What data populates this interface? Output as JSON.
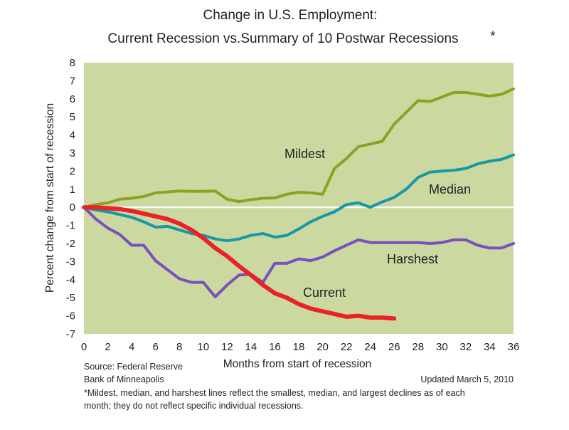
{
  "chart_data": {
    "type": "line",
    "title_line1": "Change in U.S. Employment:",
    "title_line2": "Current Recession vs.Summary of 10 Postwar Recessions",
    "title_mark": "*",
    "xlabel": "Months from start of recession",
    "ylabel": "Percent change from start of recession",
    "xlim": [
      0,
      36
    ],
    "ylim": [
      -7,
      8
    ],
    "x_ticks": [
      0,
      2,
      4,
      6,
      8,
      10,
      12,
      14,
      16,
      18,
      20,
      22,
      24,
      26,
      28,
      30,
      32,
      34,
      36
    ],
    "y_ticks": [
      8,
      7,
      6,
      5,
      4,
      3,
      2,
      1,
      0,
      -1,
      -2,
      -3,
      -4,
      -5,
      -6,
      -7
    ],
    "grid": false,
    "colors": {
      "plot_background": "#cbd9a0",
      "zero_line": "#ffffff"
    },
    "series": [
      {
        "name": "Mildest",
        "color": "#8ca224",
        "x": [
          0,
          1,
          2,
          3,
          4,
          5,
          6,
          7,
          8,
          9,
          10,
          11,
          12,
          13,
          14,
          15,
          16,
          17,
          18,
          19,
          20,
          21,
          22,
          23,
          24,
          25,
          26,
          27,
          28,
          29,
          30,
          31,
          32,
          33,
          34,
          35,
          36
        ],
        "y": [
          0,
          0.15,
          0.25,
          0.45,
          0.5,
          0.6,
          0.8,
          0.85,
          0.9,
          0.88,
          0.88,
          0.9,
          0.45,
          0.32,
          0.42,
          0.5,
          0.52,
          0.72,
          0.83,
          0.8,
          0.72,
          2.15,
          2.7,
          3.35,
          3.5,
          3.65,
          4.6,
          5.25,
          5.9,
          5.85,
          6.1,
          6.35,
          6.35,
          6.25,
          6.15,
          6.25,
          6.55
        ]
      },
      {
        "name": "Median",
        "color": "#1898a6",
        "x": [
          0,
          1,
          2,
          3,
          4,
          5,
          6,
          7,
          8,
          9,
          10,
          11,
          12,
          13,
          14,
          15,
          16,
          17,
          18,
          19,
          20,
          21,
          22,
          23,
          24,
          25,
          26,
          27,
          28,
          29,
          30,
          31,
          32,
          33,
          34,
          35,
          36
        ],
        "y": [
          0,
          -0.15,
          -0.25,
          -0.4,
          -0.55,
          -0.8,
          -1.1,
          -1.05,
          -1.25,
          -1.45,
          -1.55,
          -1.75,
          -1.85,
          -1.75,
          -1.55,
          -1.45,
          -1.65,
          -1.55,
          -1.2,
          -0.8,
          -0.5,
          -0.25,
          0.15,
          0.25,
          0.0,
          0.3,
          0.55,
          1.0,
          1.65,
          1.95,
          2.0,
          2.05,
          2.15,
          2.4,
          2.55,
          2.65,
          2.9
        ]
      },
      {
        "name": "Harshest",
        "color": "#7b4fbc",
        "x": [
          0,
          1,
          2,
          3,
          4,
          5,
          6,
          7,
          8,
          9,
          10,
          11,
          12,
          13,
          14,
          15,
          16,
          17,
          18,
          19,
          20,
          21,
          22,
          23,
          24,
          25,
          26,
          27,
          28,
          29,
          30,
          31,
          32,
          33,
          34,
          35,
          36
        ],
        "y": [
          0,
          -0.65,
          -1.15,
          -1.5,
          -2.1,
          -2.1,
          -2.95,
          -3.45,
          -3.95,
          -4.15,
          -4.15,
          -4.95,
          -4.3,
          -3.75,
          -3.7,
          -4.15,
          -3.1,
          -3.1,
          -2.85,
          -2.95,
          -2.75,
          -2.4,
          -2.1,
          -1.8,
          -1.95,
          -1.95,
          -1.95,
          -1.95,
          -1.95,
          -2.0,
          -1.95,
          -1.8,
          -1.8,
          -2.1,
          -2.25,
          -2.25,
          -2.0
        ]
      },
      {
        "name": "Current",
        "color": "#ea2227",
        "x": [
          0,
          1,
          2,
          3,
          4,
          5,
          6,
          7,
          8,
          9,
          10,
          11,
          12,
          13,
          14,
          15,
          16,
          17,
          18,
          19,
          20,
          21,
          22,
          23,
          24,
          25,
          26
        ],
        "y": [
          0,
          0,
          -0.05,
          -0.1,
          -0.2,
          -0.35,
          -0.5,
          -0.65,
          -0.9,
          -1.25,
          -1.7,
          -2.25,
          -2.7,
          -3.25,
          -3.75,
          -4.3,
          -4.75,
          -5.0,
          -5.35,
          -5.6,
          -5.75,
          -5.9,
          -6.05,
          -6.0,
          -6.1,
          -6.1,
          -6.15
        ]
      }
    ]
  },
  "labels": {
    "mildest": "Mildest",
    "median": "Median",
    "harshest": "Harshest",
    "current": "Current"
  },
  "source_line1": "Source: Federal Reserve",
  "source_line2": "Bank of Minneapolis",
  "updated": "Updated March 5, 2010",
  "footnote_line1": "*Mildest, median, and harshest lines reflect the smallest, median, and largest declines as of each",
  "footnote_line2": "month; they do not reflect specific individual recessions."
}
